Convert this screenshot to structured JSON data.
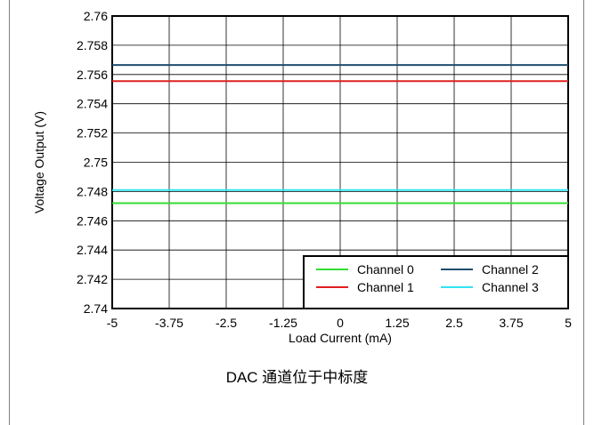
{
  "chart_data": {
    "type": "line",
    "xlabel": "Load Current (mA)",
    "ylabel": "Voltage Output (V)",
    "xlim": [
      -5,
      5
    ],
    "ylim": [
      2.74,
      2.76
    ],
    "x_ticks": [
      "-5",
      "-3.75",
      "-2.5",
      "-1.25",
      "0",
      "1.25",
      "2.5",
      "3.75",
      "5"
    ],
    "y_ticks": [
      "2.74",
      "2.742",
      "2.744",
      "2.746",
      "2.748",
      "2.75",
      "2.752",
      "2.754",
      "2.756",
      "2.758",
      "2.76"
    ],
    "grid": true,
    "legend_position": "bottom-right",
    "series": [
      {
        "name": "Channel 0",
        "color": "#33dd33",
        "x": [
          -5,
          5
        ],
        "y": [
          2.7472,
          2.7472
        ]
      },
      {
        "name": "Channel 1",
        "color": "#e02020",
        "x": [
          -5,
          5
        ],
        "y": [
          2.75555,
          2.75555
        ]
      },
      {
        "name": "Channel 2",
        "color": "#1f4e6e",
        "x": [
          -5,
          5
        ],
        "y": [
          2.75665,
          2.75665
        ]
      },
      {
        "name": "Channel 3",
        "color": "#33e3f0",
        "x": [
          -5,
          5
        ],
        "y": [
          2.7481,
          2.7481
        ]
      }
    ]
  },
  "caption": "DAC 通道位于中标度"
}
